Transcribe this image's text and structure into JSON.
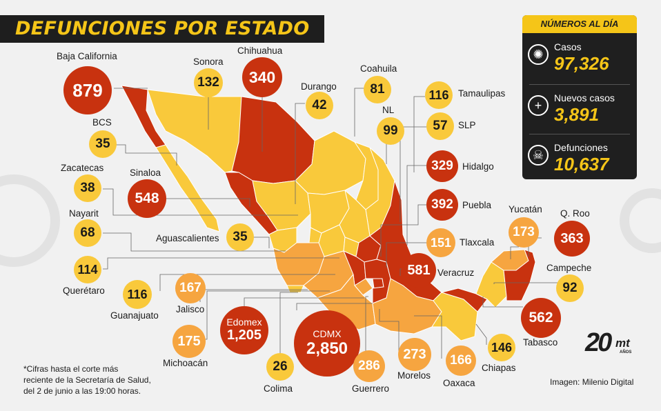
{
  "title": "DEFUNCIONES POR ESTADO",
  "summary": {
    "heading": "NÚMEROS AL DÍA",
    "stats": [
      {
        "label": "Casos",
        "value": "97,326",
        "icon": "virus-icon"
      },
      {
        "label": "Nuevos casos",
        "value": "3,891",
        "icon": "plus-icon"
      },
      {
        "label": "Defunciones",
        "value": "10,637",
        "icon": "skull-icon"
      }
    ]
  },
  "states": [
    {
      "name": "Baja California",
      "deaths": "879",
      "level": "high"
    },
    {
      "name": "Sonora",
      "deaths": "132",
      "level": "low"
    },
    {
      "name": "Chihuahua",
      "deaths": "340",
      "level": "high"
    },
    {
      "name": "Durango",
      "deaths": "42",
      "level": "low"
    },
    {
      "name": "Coahuila",
      "deaths": "81",
      "level": "low"
    },
    {
      "name": "Tamaulipas",
      "deaths": "116",
      "level": "low"
    },
    {
      "name": "NL",
      "deaths": "99",
      "level": "low"
    },
    {
      "name": "SLP",
      "deaths": "57",
      "level": "low"
    },
    {
      "name": "BCS",
      "deaths": "35",
      "level": "low"
    },
    {
      "name": "Zacatecas",
      "deaths": "38",
      "level": "low"
    },
    {
      "name": "Sinaloa",
      "deaths": "548",
      "level": "high"
    },
    {
      "name": "Hidalgo",
      "deaths": "329",
      "level": "high"
    },
    {
      "name": "Puebla",
      "deaths": "392",
      "level": "high"
    },
    {
      "name": "Nayarit",
      "deaths": "68",
      "level": "low"
    },
    {
      "name": "Aguascalientes",
      "deaths": "35",
      "level": "low"
    },
    {
      "name": "Tlaxcala",
      "deaths": "151",
      "level": "mid"
    },
    {
      "name": "Yucatán",
      "deaths": "173",
      "level": "mid"
    },
    {
      "name": "Q. Roo",
      "deaths": "363",
      "level": "high"
    },
    {
      "name": "Querétaro",
      "deaths": "114",
      "level": "low"
    },
    {
      "name": "Veracruz",
      "deaths": "581",
      "level": "high"
    },
    {
      "name": "Campeche",
      "deaths": "92",
      "level": "low"
    },
    {
      "name": "Guanajuato",
      "deaths": "116",
      "level": "low"
    },
    {
      "name": "Jalisco",
      "deaths": "167",
      "level": "mid"
    },
    {
      "name": "Edomex",
      "deaths": "1,205",
      "level": "high"
    },
    {
      "name": "CDMX",
      "deaths": "2,850",
      "level": "high"
    },
    {
      "name": "Tabasco",
      "deaths": "562",
      "level": "high"
    },
    {
      "name": "Michoacán",
      "deaths": "175",
      "level": "mid"
    },
    {
      "name": "Colima",
      "deaths": "26",
      "level": "low"
    },
    {
      "name": "Guerrero",
      "deaths": "286",
      "level": "mid"
    },
    {
      "name": "Morelos",
      "deaths": "273",
      "level": "mid"
    },
    {
      "name": "Oaxaca",
      "deaths": "166",
      "level": "mid"
    },
    {
      "name": "Chiapas",
      "deaths": "146",
      "level": "low"
    }
  ],
  "colors": {
    "low": "#f9c93b",
    "mid": "#f6a540",
    "high": "#c8320f",
    "panel": "#1f1f1f",
    "accent": "#f5c518"
  },
  "footnote": [
    "*Cifras hasta el corte más",
    "reciente de la Secretaría de Salud,",
    "del 2 de junio a las 19:00 horas."
  ],
  "credit": "Imagen: Milenio Digital",
  "logo": {
    "number": "20",
    "brand": "mt",
    "sub": "AÑOS"
  }
}
